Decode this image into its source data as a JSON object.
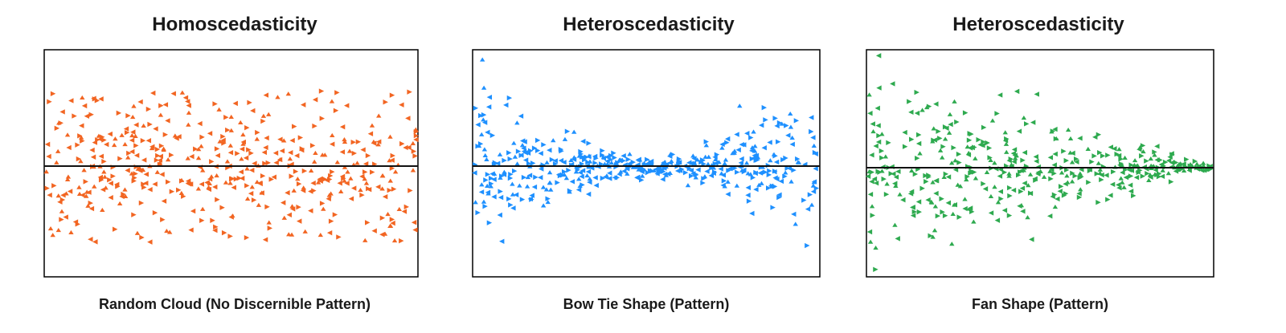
{
  "chart_data": [
    {
      "type": "scatter",
      "title": "Homoscedasticity",
      "caption": "Random Cloud (No Discernible Pattern)",
      "color": "#f26522",
      "pattern": "random",
      "reference_line_y": 0,
      "xlim": [
        0,
        100
      ],
      "ylim": [
        -1,
        1
      ],
      "point_count": 480
    },
    {
      "type": "scatter",
      "title": "Heteroscedasticity",
      "caption": "Bow Tie Shape (Pattern)",
      "color": "#1e90ff",
      "pattern": "bowtie",
      "reference_line_y": 0,
      "xlim": [
        0,
        100
      ],
      "ylim": [
        -1,
        1
      ],
      "point_count": 480
    },
    {
      "type": "scatter",
      "title": "Heteroscedasticity",
      "caption": "Fan Shape (Pattern)",
      "color": "#2eaa4f",
      "pattern": "fan",
      "reference_line_y": 0,
      "xlim": [
        0,
        100
      ],
      "ylim": [
        -1,
        1
      ],
      "point_count": 430
    }
  ]
}
